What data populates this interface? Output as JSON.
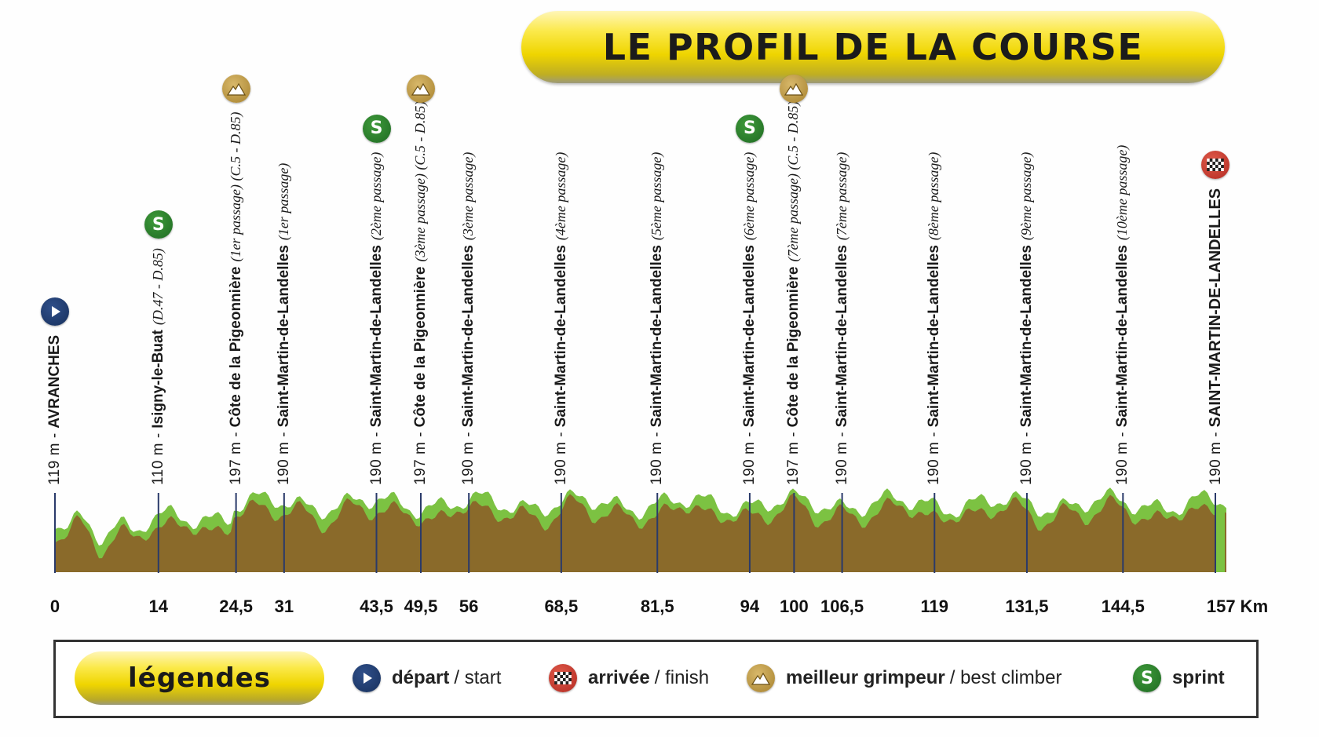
{
  "title": "LE PROFIL DE LA COURSE",
  "unit": "Km",
  "colors": {
    "terrain": "#8a6a2a",
    "grass": "#7cc242",
    "marker_line": "#2a3a6a",
    "sprint": "#2a7d2e",
    "climb": "#c29a46",
    "start": "#1f3c6e",
    "finish": "#c9362c"
  },
  "waypoints": [
    {
      "km": 0,
      "km_label": "0",
      "alt": "119 m",
      "name": "AVRANCHES",
      "extra": "",
      "icon": "start-icon",
      "type": "start"
    },
    {
      "km": 14,
      "km_label": "14",
      "alt": "110 m",
      "name": "Isigny-le-Buat",
      "extra": "(D.47 - D.85)",
      "icon": "sprint-icon",
      "type": "sprint"
    },
    {
      "km": 24.5,
      "km_label": "24,5",
      "alt": "197 m",
      "name": "Côte de la Pigeonnière",
      "extra": "(1er passage) (C.5 - D.85)",
      "icon": "climb-icon",
      "type": "climb"
    },
    {
      "km": 31,
      "km_label": "31",
      "alt": "190 m",
      "name": "Saint-Martin-de-Landelles",
      "extra": "(1er passage)",
      "icon": "",
      "type": "passage"
    },
    {
      "km": 43.5,
      "km_label": "43,5",
      "alt": "190 m",
      "name": "Saint-Martin-de-Landelles",
      "extra": "(2ème passage)",
      "icon": "sprint-icon",
      "type": "sprint"
    },
    {
      "km": 49.5,
      "km_label": "49,5",
      "alt": "197 m",
      "name": "Côte de la Pigeonnière",
      "extra": "(3ème passage) (C.5 - D.85)",
      "icon": "climb-icon",
      "type": "climb"
    },
    {
      "km": 56,
      "km_label": "56",
      "alt": "190 m",
      "name": "Saint-Martin-de-Landelles",
      "extra": "(3ème passage)",
      "icon": "",
      "type": "passage"
    },
    {
      "km": 68.5,
      "km_label": "68,5",
      "alt": "190 m",
      "name": "Saint-Martin-de-Landelles",
      "extra": "(4ème passage)",
      "icon": "",
      "type": "passage"
    },
    {
      "km": 81.5,
      "km_label": "81,5",
      "alt": "190 m",
      "name": "Saint-Martin-de-Landelles",
      "extra": "(5ème passage)",
      "icon": "",
      "type": "passage"
    },
    {
      "km": 94,
      "km_label": "94",
      "alt": "190 m",
      "name": "Saint-Martin-de-Landelles",
      "extra": "(6ème passage)",
      "icon": "sprint-icon",
      "type": "sprint"
    },
    {
      "km": 100,
      "km_label": "100",
      "alt": "197 m",
      "name": "Côte de la Pigeonnière",
      "extra": "(7ème passage) (C.5 - D.85)",
      "icon": "climb-icon",
      "type": "climb"
    },
    {
      "km": 106.5,
      "km_label": "106,5",
      "alt": "190 m",
      "name": "Saint-Martin-de-Landelles",
      "extra": "(7ème passage)",
      "icon": "",
      "type": "passage"
    },
    {
      "km": 119,
      "km_label": "119",
      "alt": "190 m",
      "name": "Saint-Martin-de-Landelles",
      "extra": "(8ème passage)",
      "icon": "",
      "type": "passage"
    },
    {
      "km": 131.5,
      "km_label": "131,5",
      "alt": "190 m",
      "name": "Saint-Martin-de-Landelles",
      "extra": "(9ème passage)",
      "icon": "",
      "type": "passage"
    },
    {
      "km": 144.5,
      "km_label": "144,5",
      "alt": "190 m",
      "name": "Saint-Martin-de-Landelles",
      "extra": "(10ème passage)",
      "icon": "",
      "type": "passage"
    },
    {
      "km": 157,
      "km_label": "157 Km",
      "alt": "190 m",
      "name": "SAINT-MARTIN-DE-LANDELLES",
      "extra": "",
      "icon": "finish-icon",
      "type": "finish"
    }
  ],
  "legend": {
    "title": "légendes",
    "items": [
      {
        "icon": "start-icon",
        "main": "départ",
        "en": "/ start",
        "type": "start"
      },
      {
        "icon": "finish-icon",
        "main": "arrivée",
        "en": "/ finish",
        "type": "finish"
      },
      {
        "icon": "climb-icon",
        "main": "meilleur grimpeur",
        "en": "/ best climber",
        "type": "climb"
      },
      {
        "icon": "sprint-icon",
        "main": "sprint",
        "en": "",
        "type": "sprint"
      }
    ]
  }
}
